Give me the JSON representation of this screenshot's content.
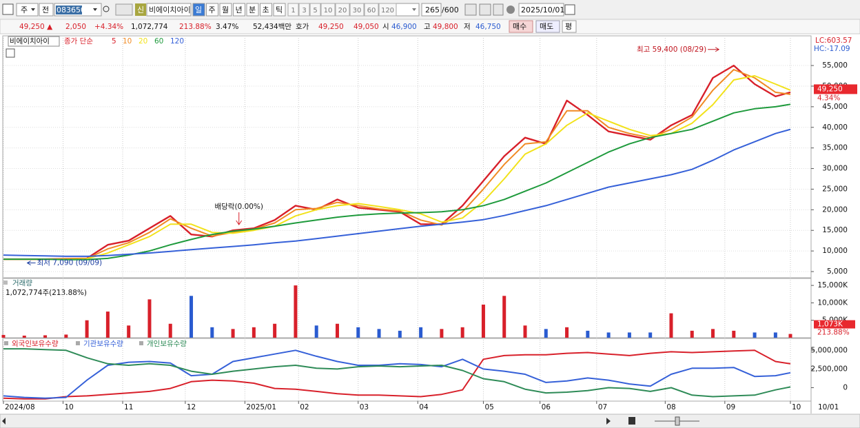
{
  "toolbar": {
    "market": "주",
    "scope": "전",
    "code": "083650",
    "badge": "신",
    "name": "비에이치아이",
    "periods": [
      "일",
      "주",
      "월",
      "년",
      "분",
      "초",
      "틱"
    ],
    "intervals": [
      "1",
      "3",
      "5",
      "10",
      "20",
      "30",
      "60",
      "120"
    ],
    "count": "265",
    "max": "/600",
    "date": "2025/10/01"
  },
  "info": {
    "price": "49,250 ▲",
    "change": "2,050",
    "rate": "+4.34%",
    "volume": "1,072,774",
    "volume_ratio": "213.88%",
    "turnover": "3.47%",
    "amount": "52,434백만",
    "quote_label": "호가",
    "ask": "49,250",
    "bid": "49,050",
    "open_label": "시",
    "open": "46,900",
    "high_label": "고",
    "high": "49,800",
    "low_label": "저",
    "low": "46,750",
    "buy": "매수",
    "sell": "매도",
    "avg": "평"
  },
  "chart_data": [
    {
      "type": "line",
      "title": "비에이치아이",
      "indicator": "종가 단순",
      "grid": true,
      "x": [
        0,
        7,
        14,
        21,
        28,
        35,
        42,
        49,
        56,
        63,
        70,
        77,
        84,
        91,
        98,
        105,
        112,
        119,
        126,
        133,
        140,
        147,
        154,
        161,
        168,
        175,
        182,
        189,
        196,
        203,
        210,
        217,
        224,
        231,
        238,
        245,
        252,
        259,
        264
      ],
      "xlim": [
        0,
        264
      ],
      "ylim": [
        3500,
        61700
      ],
      "yticks": [
        {
          "value": 5000,
          "label": "5,000"
        },
        {
          "value": 10000,
          "label": "10,000"
        },
        {
          "value": 15000,
          "label": "15,000"
        },
        {
          "value": 20000,
          "label": "20,000"
        },
        {
          "value": 25000,
          "label": "25,000"
        },
        {
          "value": 30000,
          "label": "30,000"
        },
        {
          "value": 35000,
          "label": "35,000"
        },
        {
          "value": 40000,
          "label": "40,000"
        },
        {
          "value": 45000,
          "label": "45,000"
        },
        {
          "value": 50000,
          "label": "50,000"
        },
        {
          "value": 55000,
          "label": "55,000"
        }
      ],
      "series": [
        {
          "name": "5",
          "color": "#d8202a",
          "values": [
            8000,
            8000,
            8000,
            8100,
            8200,
            11500,
            12500,
            15500,
            18500,
            14000,
            13500,
            15000,
            15500,
            17500,
            21000,
            20000,
            22500,
            20500,
            20000,
            19500,
            16500,
            16500,
            21000,
            27000,
            33000,
            37500,
            36000,
            46500,
            43000,
            39000,
            38000,
            37000,
            40500,
            43000,
            52000,
            55000,
            50500,
            47500,
            48500
          ]
        },
        {
          "name": "10",
          "color": "#f08a24",
          "values": [
            8000,
            8000,
            8000,
            8050,
            8150,
            10500,
            12000,
            14500,
            17800,
            15500,
            13600,
            14500,
            15300,
            16800,
            20000,
            20300,
            21800,
            21000,
            20200,
            19700,
            17500,
            16300,
            19500,
            25000,
            31000,
            36000,
            36500,
            44000,
            44000,
            40000,
            38500,
            37500,
            39500,
            42500,
            49000,
            54000,
            52000,
            48500,
            48000
          ]
        },
        {
          "name": "20",
          "color": "#f2e21a",
          "values": [
            8000,
            8000,
            8000,
            8000,
            8100,
            9500,
            11500,
            13500,
            16500,
            16500,
            14500,
            14300,
            15000,
            16000,
            18500,
            20000,
            21000,
            21500,
            20800,
            20000,
            19000,
            17000,
            18000,
            22000,
            27500,
            33500,
            36000,
            40500,
            43500,
            41500,
            39500,
            38000,
            38500,
            41000,
            45500,
            51500,
            52500,
            50500,
            49000
          ]
        },
        {
          "name": "60",
          "color": "#1e9a3c",
          "values": [
            8000,
            8000,
            8000,
            7900,
            7900,
            8200,
            9000,
            10000,
            11500,
            12800,
            14000,
            14800,
            15300,
            16000,
            16800,
            17500,
            18200,
            18700,
            19000,
            19200,
            19300,
            19500,
            20000,
            21000,
            22500,
            24500,
            26500,
            29000,
            31500,
            34000,
            36000,
            37500,
            38500,
            39500,
            41500,
            43500,
            44500,
            45000,
            45600
          ]
        },
        {
          "name": "120",
          "color": "#3560d8",
          "values": [
            9000,
            8900,
            8800,
            8700,
            8700,
            8900,
            9200,
            9500,
            9900,
            10300,
            10700,
            11100,
            11500,
            12000,
            12400,
            13000,
            13600,
            14200,
            14800,
            15400,
            16000,
            16500,
            17000,
            17600,
            18600,
            19800,
            21000,
            22500,
            24000,
            25500,
            26500,
            27500,
            28500,
            29800,
            32000,
            34500,
            36500,
            38500,
            39500
          ]
        }
      ],
      "annotations": [
        {
          "text": "최고 59,400 (08/29)",
          "x": 240,
          "y": 59400
        },
        {
          "text": "최저 7,090 (09/09)",
          "x": 8,
          "y": 7090
        },
        {
          "text": "배당락(0.00%)",
          "x": 79
        }
      ],
      "lc_label": "LC:603.57",
      "hc_label": "HC:-17.09",
      "last_price": {
        "value": 49250,
        "label": "49,250"
      },
      "last_rate": "4.34%"
    },
    {
      "type": "bar",
      "title": "거래량",
      "subtitle": "1,072,774주(213.88%)",
      "x": [
        0,
        7,
        14,
        21,
        28,
        35,
        42,
        49,
        56,
        63,
        70,
        77,
        84,
        91,
        98,
        105,
        112,
        119,
        126,
        133,
        140,
        147,
        154,
        161,
        168,
        175,
        182,
        189,
        196,
        203,
        210,
        217,
        224,
        231,
        238,
        245,
        252,
        259,
        264
      ],
      "xlim": [
        0,
        264
      ],
      "ylim": [
        0,
        17000
      ],
      "yticks": [
        {
          "value": 5000,
          "label": "5,000K"
        },
        {
          "value": 10000,
          "label": "10,000K"
        },
        {
          "value": 15000,
          "label": "15,000K"
        }
      ],
      "values": [
        800,
        600,
        700,
        900,
        5000,
        7500,
        3500,
        11000,
        4000,
        12000,
        3000,
        2500,
        3000,
        4000,
        15000,
        3500,
        4000,
        3000,
        2500,
        2000,
        3000,
        2500,
        3000,
        9500,
        12000,
        3500,
        2500,
        3000,
        2000,
        1500,
        1500,
        1500,
        7000,
        2000,
        2500,
        2000,
        1500,
        1500,
        1073
      ],
      "up_color": "#d8202a",
      "down_color": "#2a5bd0",
      "last_value": {
        "value": 1073,
        "label": "1,073K"
      },
      "last_rate": "213.88%"
    },
    {
      "type": "line",
      "x": [
        0,
        7,
        14,
        21,
        28,
        35,
        42,
        49,
        56,
        63,
        70,
        77,
        84,
        91,
        98,
        105,
        112,
        119,
        126,
        133,
        140,
        147,
        154,
        161,
        168,
        175,
        182,
        189,
        196,
        203,
        210,
        217,
        224,
        231,
        238,
        245,
        252,
        259,
        264
      ],
      "xlim": [
        0,
        264
      ],
      "ylim": [
        -1800000,
        6500000
      ],
      "yticks": [
        0,
        {
          "value": 2500000,
          "label": "2,500,000"
        },
        {
          "value": 5000000,
          "label": "5,000,000"
        }
      ],
      "xticks": [
        {
          "value": 0,
          "label": "2024/08"
        },
        {
          "value": 20,
          "label": "10"
        },
        {
          "value": 40,
          "label": "11"
        },
        {
          "value": 61,
          "label": "12"
        },
        {
          "value": 81,
          "label": "2025/01"
        },
        {
          "value": 99,
          "label": "02"
        },
        {
          "value": 119,
          "label": "03"
        },
        {
          "value": 139,
          "label": "04"
        },
        {
          "value": 161,
          "label": "05"
        },
        {
          "value": 180,
          "label": "06"
        },
        {
          "value": 199,
          "label": "07"
        },
        {
          "value": 222,
          "label": "08"
        },
        {
          "value": 242,
          "label": "09"
        },
        {
          "value": 264,
          "label": "10"
        }
      ],
      "x_end_label": "10/01",
      "series": [
        {
          "name": "외국인보유수량",
          "color": "#d8202a",
          "values": [
            -1400000,
            -1500000,
            -1500000,
            -1200000,
            -1100000,
            -900000,
            -700000,
            -500000,
            -100000,
            800000,
            1000000,
            900000,
            600000,
            -100000,
            -200000,
            -500000,
            -800000,
            -1000000,
            -1000000,
            -1100000,
            -1200000,
            -900000,
            -300000,
            3800000,
            4300000,
            4400000,
            4400000,
            4600000,
            4700000,
            4500000,
            4300000,
            4600000,
            4800000,
            4700000,
            4800000,
            4900000,
            5000000,
            3500000,
            3200000
          ]
        },
        {
          "name": "기관보유수량",
          "color": "#3560d8",
          "values": [
            -1100000,
            -1300000,
            -1400000,
            -1300000,
            1000000,
            3000000,
            3400000,
            3500000,
            3300000,
            1600000,
            1800000,
            3500000,
            4000000,
            4500000,
            5000000,
            4200000,
            3500000,
            3000000,
            3000000,
            3200000,
            3100000,
            2800000,
            3800000,
            2500000,
            2200000,
            1800000,
            700000,
            900000,
            1300000,
            1000000,
            500000,
            200000,
            1800000,
            2600000,
            2600000,
            2700000,
            1500000,
            1600000,
            2000000
          ]
        },
        {
          "name": "개인보유수량",
          "color": "#2e8b57",
          "values": [
            5200000,
            5200000,
            5100000,
            5000000,
            4000000,
            3200000,
            3000000,
            3200000,
            3000000,
            2200000,
            1800000,
            2200000,
            2500000,
            2800000,
            3000000,
            2600000,
            2500000,
            2800000,
            2900000,
            2800000,
            2900000,
            3000000,
            2300000,
            1200000,
            800000,
            -200000,
            -700000,
            -600000,
            -400000,
            0,
            -100000,
            -500000,
            0,
            -1000000,
            -1200000,
            -1100000,
            -1000000,
            -300000,
            100000
          ]
        }
      ]
    }
  ]
}
